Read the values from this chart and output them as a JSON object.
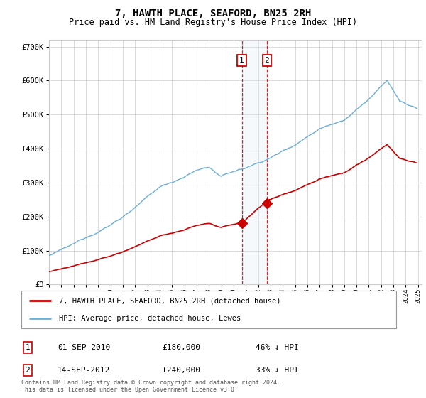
{
  "title": "7, HAWTH PLACE, SEAFORD, BN25 2RH",
  "subtitle": "Price paid vs. HM Land Registry's House Price Index (HPI)",
  "ylim": [
    0,
    720000
  ],
  "yticks": [
    0,
    100000,
    200000,
    300000,
    400000,
    500000,
    600000,
    700000
  ],
  "ytick_labels": [
    "£0",
    "£100K",
    "£200K",
    "£300K",
    "£400K",
    "£500K",
    "£600K",
    "£700K"
  ],
  "sale1_year": 2010.67,
  "sale2_year": 2012.71,
  "sale1_price": 180000,
  "sale2_price": 240000,
  "legend_line1": "7, HAWTH PLACE, SEAFORD, BN25 2RH (detached house)",
  "legend_line2": "HPI: Average price, detached house, Lewes",
  "table_row1": [
    "1",
    "01-SEP-2010",
    "£180,000",
    "46% ↓ HPI"
  ],
  "table_row2": [
    "2",
    "14-SEP-2012",
    "£240,000",
    "33% ↓ HPI"
  ],
  "footnote": "Contains HM Land Registry data © Crown copyright and database right 2024.\nThis data is licensed under the Open Government Licence v3.0.",
  "hpi_color": "#6baed6",
  "sale_color": "#cc0000",
  "shade_color": "#daeaf7",
  "vline_color": "#cc0000",
  "grid_color": "#cccccc",
  "xlim_start": 1995,
  "xlim_end": 2025.3
}
